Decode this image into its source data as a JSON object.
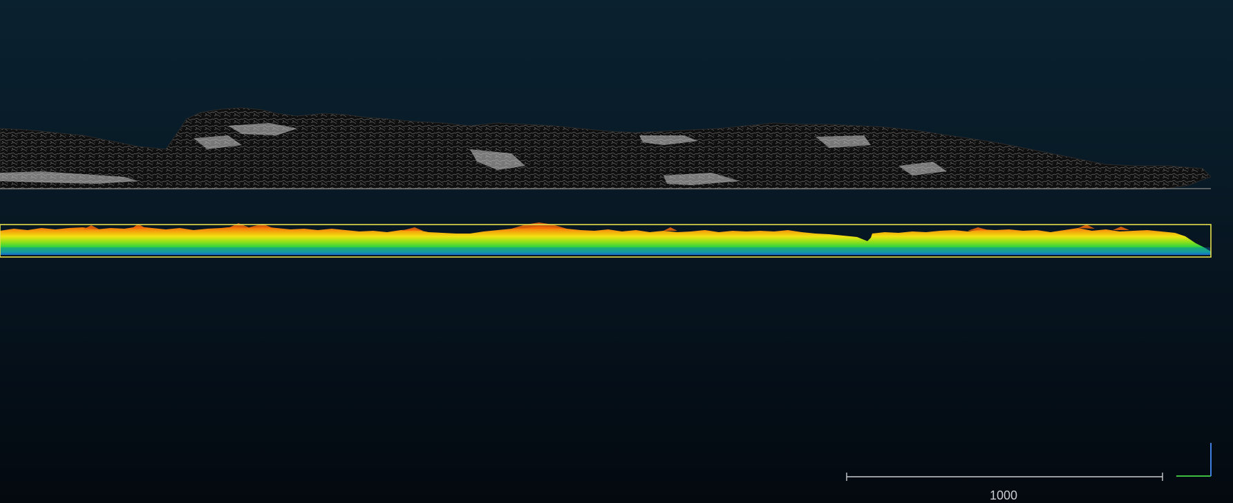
{
  "view": {
    "background_top": "#0a2130",
    "background_bottom": "#04090f"
  },
  "point_clouds": {
    "grey_cloud": {
      "color_mode": "intensity-greyscale"
    },
    "elevation_cloud": {
      "color_mode": "elevation-ramp",
      "ramp": [
        "#1f6bd8",
        "#16c4a0",
        "#1ed04a",
        "#8ee21c",
        "#f1e310",
        "#f58a0c"
      ],
      "selected": true,
      "selection_color": "#e6e04a"
    }
  },
  "scale_bar": {
    "label": "1000",
    "color": "#c9ccd0"
  },
  "axis_gizmo": {
    "x_color": "#3fbf3f",
    "y_color": "#3f7fe0"
  }
}
